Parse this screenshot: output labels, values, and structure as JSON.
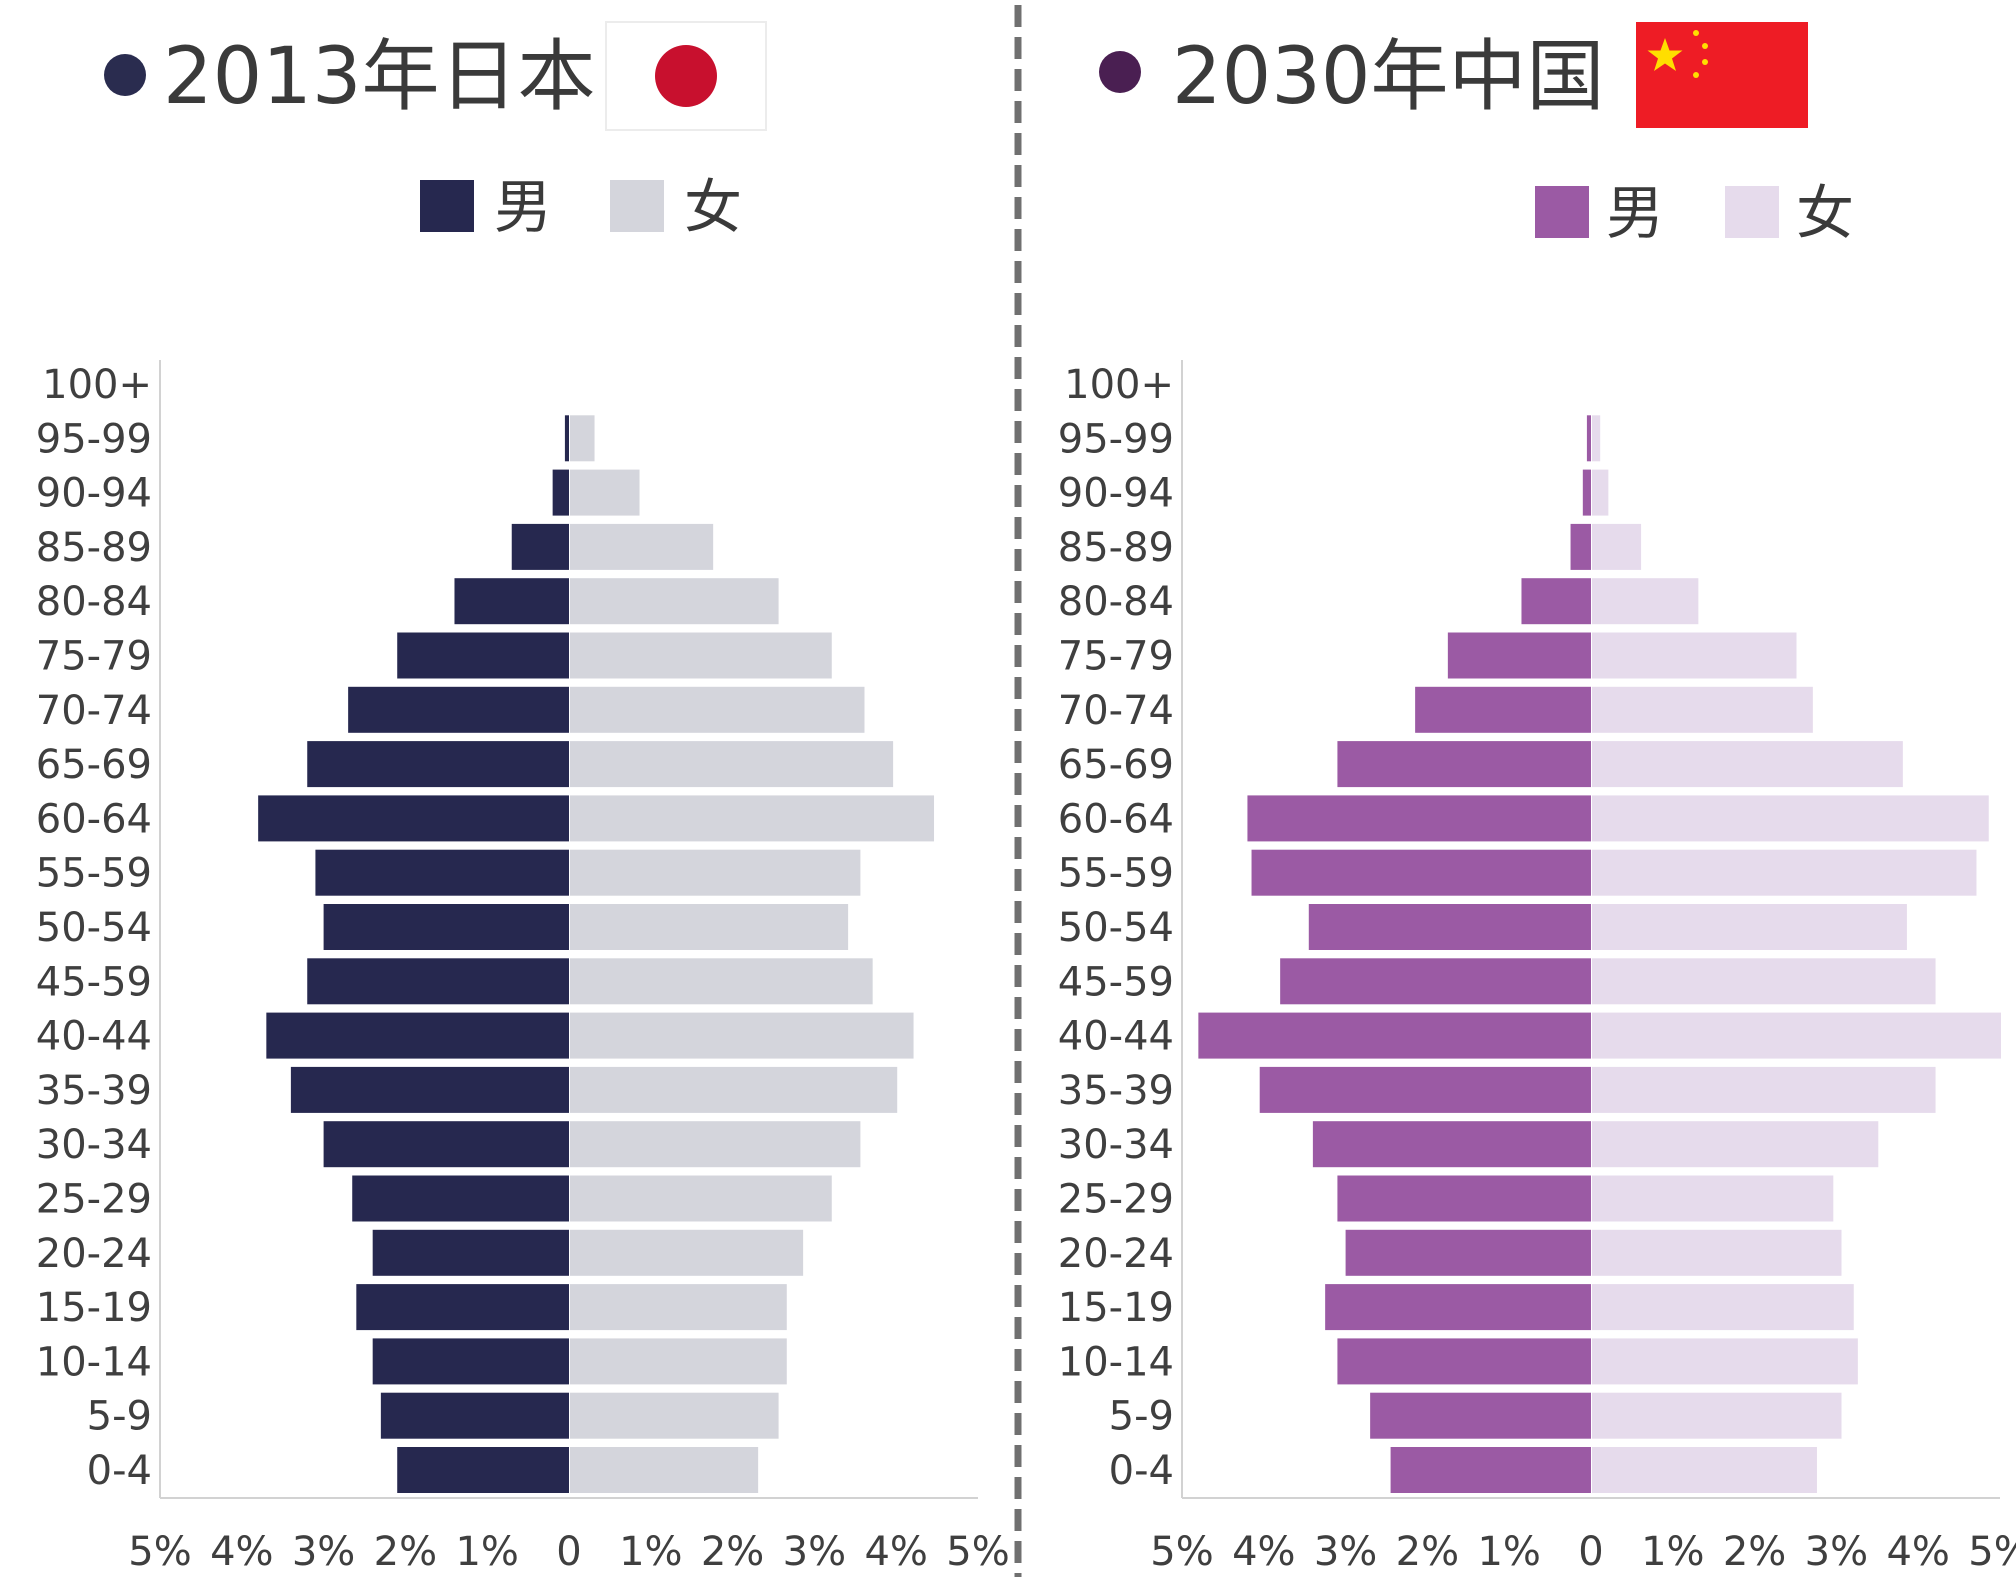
{
  "chart_data": [
    {
      "type": "bar",
      "orientation": "horizontal-population-pyramid",
      "title": "2013年日本",
      "title_dot_color": "#2a2c4f",
      "flag": "japan-flag",
      "xlabel": "",
      "ylabel": "",
      "x_ticks": [
        "5%",
        "4%",
        "3%",
        "2%",
        "1%",
        "0",
        "1%",
        "2%",
        "3%",
        "4%",
        "5%"
      ],
      "xlim": [
        -5,
        5
      ],
      "grid": false,
      "legend_position": "top",
      "categories": [
        "0-4",
        "5-9",
        "10-14",
        "15-19",
        "20-24",
        "25-29",
        "30-34",
        "35-39",
        "40-44",
        "45-59",
        "50-54",
        "55-59",
        "60-64",
        "65-69",
        "70-74",
        "75-79",
        "80-84",
        "85-89",
        "90-94",
        "95-99",
        "100+"
      ],
      "series": [
        {
          "name": "男",
          "color": "#26284f",
          "values": [
            2.1,
            2.3,
            2.4,
            2.6,
            2.4,
            2.65,
            3.0,
            3.4,
            3.7,
            3.2,
            3.0,
            3.1,
            3.8,
            3.2,
            2.7,
            2.1,
            1.4,
            0.7,
            0.2,
            0.05,
            0.0
          ]
        },
        {
          "name": "女",
          "color": "#d4d5dc",
          "values": [
            2.3,
            2.55,
            2.65,
            2.65,
            2.85,
            3.2,
            3.55,
            4.0,
            4.2,
            3.7,
            3.4,
            3.55,
            4.45,
            3.95,
            3.6,
            3.2,
            2.55,
            1.75,
            0.85,
            0.3,
            0.0
          ]
        }
      ]
    },
    {
      "type": "bar",
      "orientation": "horizontal-population-pyramid",
      "title": "2030年中国",
      "title_dot_color": "#4a1f52",
      "flag": "china-flag",
      "xlabel": "",
      "ylabel": "",
      "x_ticks": [
        "5%",
        "4%",
        "3%",
        "2%",
        "1%",
        "0",
        "1%",
        "2%",
        "3%",
        "4%",
        "5%"
      ],
      "xlim": [
        -5,
        5
      ],
      "grid": false,
      "legend_position": "top",
      "categories": [
        "0-4",
        "5-9",
        "10-14",
        "15-19",
        "20-24",
        "25-29",
        "30-34",
        "35-39",
        "40-44",
        "45-59",
        "50-54",
        "55-59",
        "60-64",
        "65-69",
        "70-74",
        "75-79",
        "80-84",
        "85-89",
        "90-94",
        "95-99",
        "100+"
      ],
      "series": [
        {
          "name": "男",
          "color": "#9b5aa4",
          "values": [
            2.45,
            2.7,
            3.1,
            3.25,
            3.0,
            3.1,
            3.4,
            4.05,
            4.8,
            3.8,
            3.45,
            4.15,
            4.2,
            3.1,
            2.15,
            1.75,
            0.85,
            0.25,
            0.1,
            0.05,
            0.0
          ]
        },
        {
          "name": "女",
          "color": "#e6dbec",
          "values": [
            2.75,
            3.05,
            3.25,
            3.2,
            3.05,
            2.95,
            3.5,
            4.2,
            5.0,
            4.2,
            3.85,
            4.7,
            4.85,
            3.8,
            2.7,
            2.5,
            1.3,
            0.6,
            0.2,
            0.1,
            0.0
          ]
        }
      ]
    }
  ]
}
